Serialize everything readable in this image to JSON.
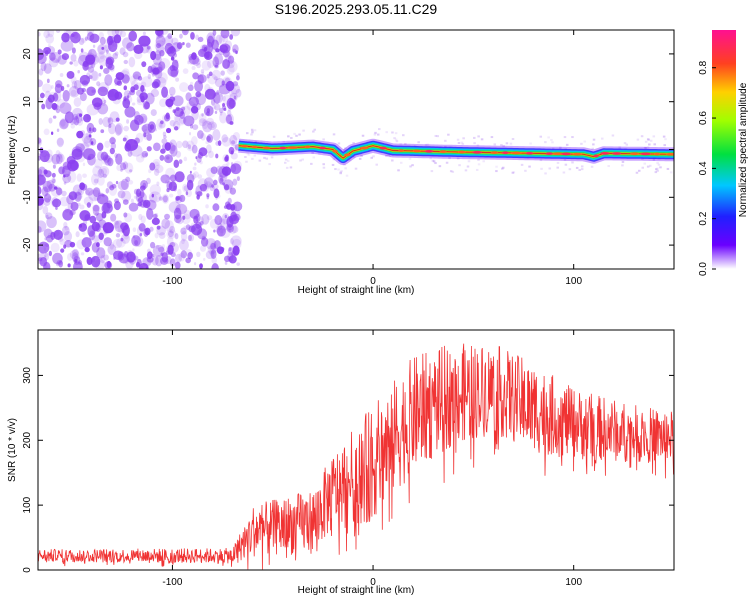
{
  "title": "S196.2025.293.05.11.C29",
  "colors": {
    "snr_line": "#f03333",
    "noise": "#8a3ff0",
    "frame": "#000000"
  },
  "chart_data": [
    {
      "type": "heatmap",
      "name": "spectrogram",
      "xlabel": "Height of straight line (km)",
      "ylabel": "Frequency (Hz)",
      "xlim": [
        -167,
        150
      ],
      "ylim": [
        -25,
        25
      ],
      "xticks": [
        -100,
        0,
        100
      ],
      "yticks": [
        -20,
        -10,
        0,
        10,
        20
      ],
      "noise_region_x": [
        -167,
        -67
      ],
      "signal_start_x": -67,
      "signal_track_freq": [
        {
          "x": -67,
          "y": 0.8
        },
        {
          "x": -50,
          "y": 0.2
        },
        {
          "x": -30,
          "y": 0.6
        },
        {
          "x": -20,
          "y": 0.0
        },
        {
          "x": -15,
          "y": -1.8
        },
        {
          "x": -10,
          "y": -0.3
        },
        {
          "x": 0,
          "y": 0.8
        },
        {
          "x": 10,
          "y": -0.2
        },
        {
          "x": 40,
          "y": -0.5
        },
        {
          "x": 80,
          "y": -0.8
        },
        {
          "x": 105,
          "y": -1.0
        },
        {
          "x": 110,
          "y": -1.5
        },
        {
          "x": 115,
          "y": -0.8
        },
        {
          "x": 150,
          "y": -1.0
        }
      ],
      "colorbar": {
        "label": "Normalized spectral amplitude",
        "range": [
          0,
          0.95
        ],
        "ticks": [
          "0.0",
          "0.2",
          "0.4",
          "0.6",
          "0.8"
        ]
      }
    },
    {
      "type": "line",
      "name": "snr",
      "xlabel": "Height of straight line (km)",
      "ylabel": "SNR (10 * v/v)",
      "xlim": [
        -167,
        150
      ],
      "ylim": [
        0,
        370
      ],
      "xticks": [
        -100,
        0,
        100
      ],
      "yticks": [
        0,
        100,
        200,
        300
      ],
      "envelope": [
        {
          "x": -167,
          "mean": 22,
          "amp": 10
        },
        {
          "x": -70,
          "mean": 22,
          "amp": 12
        },
        {
          "x": -60,
          "mean": 60,
          "amp": 40
        },
        {
          "x": -30,
          "mean": 75,
          "amp": 50
        },
        {
          "x": -20,
          "mean": 120,
          "amp": 60
        },
        {
          "x": 0,
          "mean": 165,
          "amp": 90
        },
        {
          "x": 20,
          "mean": 240,
          "amp": 90
        },
        {
          "x": 40,
          "mean": 270,
          "amp": 80
        },
        {
          "x": 60,
          "mean": 280,
          "amp": 70
        },
        {
          "x": 80,
          "mean": 250,
          "amp": 70
        },
        {
          "x": 100,
          "mean": 225,
          "amp": 55
        },
        {
          "x": 130,
          "mean": 210,
          "amp": 45
        },
        {
          "x": 150,
          "mean": 205,
          "amp": 40
        }
      ]
    }
  ]
}
